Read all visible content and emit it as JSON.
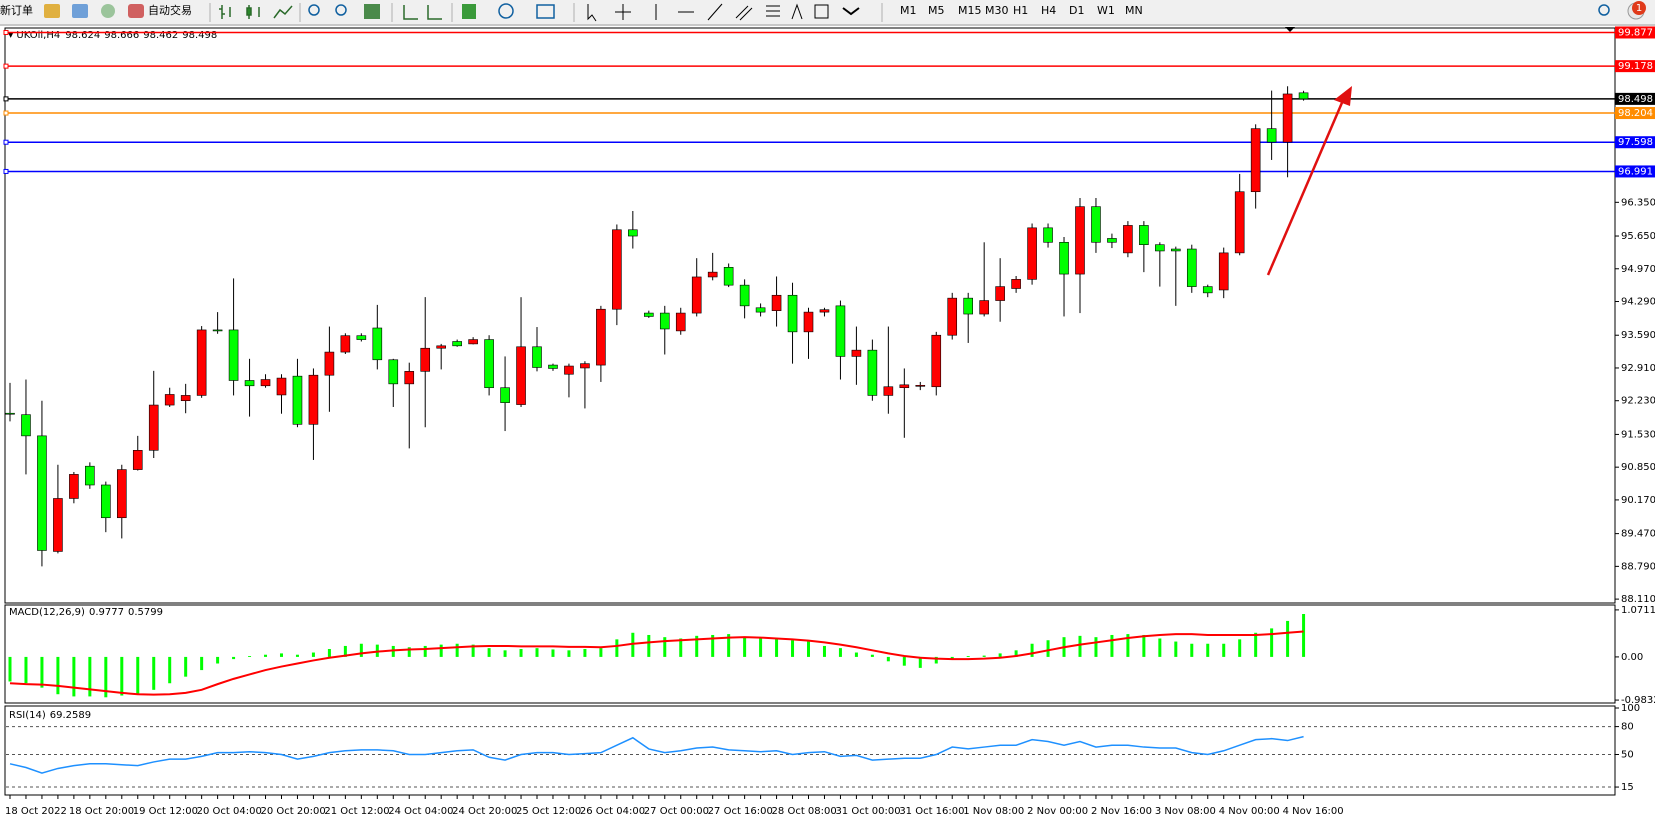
{
  "toolbar": {
    "new_order": "新订单",
    "auto_trading": "自动交易",
    "timeframes": [
      "M1",
      "M5",
      "M15",
      "M30",
      "H1",
      "H4",
      "D1",
      "W1",
      "MN"
    ],
    "notifications": 1
  },
  "chart_data": [
    {
      "type": "candlestick",
      "title": "UKOil,H4",
      "categories": [
        "18 Oct 2022",
        null,
        null,
        null,
        "18 Oct 20:00",
        null,
        null,
        null,
        "19 Oct 12:00",
        null,
        null,
        null,
        "20 Oct 04:00",
        null,
        null,
        null,
        "20 Oct 20:00",
        null,
        null,
        null,
        "21 Oct 12:00",
        null,
        null,
        null,
        "24 Oct 04:00",
        null,
        null,
        null,
        "24 Oct 20:00",
        null,
        null,
        null,
        "25 Oct 12:00",
        null,
        null,
        null,
        "26 Oct 04:00",
        null,
        null,
        null,
        "27 Oct 00:00",
        null,
        null,
        null,
        "27 Oct 16:00",
        null,
        null,
        null,
        "28 Oct 08:00",
        null,
        null,
        null,
        "31 Oct 00:00",
        null,
        null,
        null,
        "31 Oct 16:00",
        null,
        null,
        null,
        "1 Nov 08:00",
        null,
        null,
        null,
        "2 Nov 00:00",
        null,
        null,
        null,
        "2 Nov 16:00",
        null,
        null,
        null,
        "3 Nov 08:00",
        null,
        null,
        null,
        "4 Nov 00:00",
        null,
        null,
        null,
        "4 Nov 16:00",
        null
      ],
      "open": [
        91.97,
        91.94,
        91.5,
        89.1,
        90.2,
        90.87,
        90.48,
        89.8,
        90.8,
        91.2,
        92.14,
        92.23,
        92.34,
        93.7,
        93.7,
        92.65,
        92.54,
        92.35,
        92.74,
        91.74,
        92.76,
        93.24,
        93.58,
        93.74,
        93.08,
        92.58,
        92.84,
        93.32,
        93.46,
        93.41,
        93.5,
        92.5,
        92.15,
        93.35,
        92.97,
        92.78,
        92.91,
        92.97,
        94.13,
        95.78,
        94.05,
        94.05,
        93.68,
        94.05,
        94.8,
        95.0,
        94.63,
        94.16,
        94.1,
        94.42,
        93.66,
        94.07,
        94.2,
        93.15,
        93.28,
        92.34,
        92.5,
        92.55,
        92.52,
        93.59,
        94.36,
        94.03,
        94.31,
        94.56,
        94.75,
        95.82,
        95.52,
        94.86,
        96.26,
        95.6,
        95.3,
        95.87,
        95.47,
        95.38,
        95.38,
        94.6,
        94.53,
        95.3,
        96.57,
        97.88,
        97.6,
        98.624
      ],
      "high": [
        92.6,
        92.67,
        92.23,
        90.9,
        90.75,
        90.95,
        90.55,
        90.9,
        91.5,
        92.85,
        92.5,
        92.58,
        93.78,
        94.07,
        94.77,
        93.1,
        92.78,
        92.78,
        93.1,
        92.9,
        93.77,
        93.63,
        93.63,
        94.22,
        93.1,
        93.02,
        94.38,
        93.41,
        93.5,
        93.55,
        93.59,
        93.15,
        94.38,
        93.76,
        93.0,
        93.0,
        93.05,
        94.2,
        95.89,
        96.17,
        94.1,
        94.2,
        94.16,
        95.19,
        95.3,
        95.08,
        94.75,
        94.25,
        94.81,
        94.68,
        94.16,
        94.16,
        94.31,
        93.77,
        93.5,
        93.77,
        92.9,
        92.62,
        93.66,
        94.47,
        94.47,
        95.52,
        95.19,
        94.82,
        95.91,
        95.91,
        95.63,
        96.44,
        96.44,
        95.7,
        95.96,
        95.96,
        95.52,
        95.43,
        95.47,
        94.64,
        95.41,
        96.94,
        97.97,
        98.67,
        98.76,
        98.666
      ],
      "low": [
        91.8,
        90.7,
        88.79,
        89.06,
        90.1,
        90.4,
        89.5,
        89.37,
        90.78,
        91.04,
        92.1,
        91.97,
        92.29,
        93.62,
        92.34,
        91.9,
        92.5,
        91.96,
        91.68,
        91.0,
        92.0,
        93.2,
        93.46,
        92.88,
        92.1,
        91.24,
        91.68,
        92.88,
        93.35,
        93.4,
        92.34,
        91.6,
        92.1,
        92.84,
        92.85,
        92.3,
        92.07,
        92.62,
        93.8,
        95.39,
        93.95,
        93.19,
        93.6,
        93.98,
        94.73,
        94.59,
        93.94,
        93.98,
        93.77,
        93.0,
        93.1,
        93.98,
        92.67,
        92.56,
        92.23,
        91.96,
        91.46,
        92.45,
        92.34,
        93.5,
        93.43,
        93.98,
        93.87,
        94.47,
        94.64,
        95.41,
        93.98,
        94.05,
        95.3,
        95.4,
        95.21,
        94.9,
        94.6,
        94.2,
        94.47,
        94.38,
        94.36,
        95.25,
        96.22,
        97.23,
        96.87,
        98.462
      ],
      "close": [
        91.95,
        91.5,
        89.12,
        90.2,
        90.7,
        90.48,
        89.8,
        90.8,
        91.2,
        92.14,
        92.36,
        92.34,
        93.7,
        93.68,
        92.65,
        92.54,
        92.67,
        92.7,
        91.74,
        92.76,
        93.24,
        93.58,
        93.5,
        93.08,
        92.58,
        92.84,
        93.32,
        93.37,
        93.37,
        93.5,
        92.5,
        92.19,
        93.35,
        92.92,
        92.9,
        92.95,
        93.0,
        94.13,
        95.78,
        95.65,
        93.98,
        93.72,
        94.05,
        94.8,
        94.9,
        94.63,
        94.2,
        94.07,
        94.42,
        93.66,
        94.07,
        94.12,
        93.15,
        93.28,
        92.34,
        92.52,
        92.56,
        92.55,
        93.59,
        94.36,
        94.03,
        94.31,
        94.6,
        94.75,
        95.82,
        95.52,
        94.86,
        96.26,
        95.52,
        95.52,
        95.87,
        95.47,
        95.34,
        95.34,
        94.6,
        94.47,
        95.3,
        96.57,
        97.88,
        97.6,
        98.6,
        98.498
      ],
      "up_color": "#ff0000",
      "down_color": "#00ff00",
      "ylim": [
        88.05,
        99.97
      ],
      "yticks": [
        {
          "value": 88.11,
          "label": "88.110"
        },
        {
          "value": 88.79,
          "label": "88.790"
        },
        {
          "value": 89.47,
          "label": "89.470"
        },
        {
          "value": 90.17,
          "label": "90.170"
        },
        {
          "value": 90.85,
          "label": "90.850"
        },
        {
          "value": 91.53,
          "label": "91.530"
        },
        {
          "value": 92.23,
          "label": "92.230"
        },
        {
          "value": 92.91,
          "label": "92.910"
        },
        {
          "value": 93.59,
          "label": "93.590"
        },
        {
          "value": 94.29,
          "label": "94.290"
        },
        {
          "value": 94.97,
          "label": "94.970"
        },
        {
          "value": 95.65,
          "label": "95.650"
        },
        {
          "value": 96.35,
          "label": "96.350"
        }
      ],
      "levels": [
        {
          "value": 99.877,
          "color": "#ff0000"
        },
        {
          "value": 99.178,
          "color": "#ff0000"
        },
        {
          "value": 98.498,
          "color": "#000000"
        },
        {
          "value": 98.204,
          "color": "#ff8c00"
        },
        {
          "value": 97.598,
          "color": "#0000ff"
        },
        {
          "value": 96.991,
          "color": "#0000ff"
        }
      ]
    },
    {
      "type": "macd",
      "title": "MACD(12,26,9)",
      "series": [
        {
          "type": "bar",
          "color": "#00ff00",
          "values": [
            -0.56,
            -0.6,
            -0.7,
            -0.85,
            -0.9,
            -0.9,
            -0.92,
            -0.88,
            -0.85,
            -0.75,
            -0.6,
            -0.45,
            -0.3,
            -0.15,
            -0.05,
            0.02,
            0.05,
            0.08,
            0.05,
            0.1,
            0.18,
            0.25,
            0.3,
            0.28,
            0.25,
            0.22,
            0.25,
            0.28,
            0.3,
            0.28,
            0.2,
            0.15,
            0.18,
            0.2,
            0.17,
            0.15,
            0.18,
            0.2,
            0.4,
            0.55,
            0.5,
            0.45,
            0.42,
            0.48,
            0.5,
            0.52,
            0.45,
            0.45,
            0.42,
            0.38,
            0.35,
            0.25,
            0.2,
            0.1,
            0.05,
            -0.1,
            -0.2,
            -0.25,
            -0.15,
            -0.05,
            0.02,
            0.03,
            0.08,
            0.15,
            0.3,
            0.38,
            0.45,
            0.48,
            0.45,
            0.5,
            0.52,
            0.5,
            0.42,
            0.35,
            0.3,
            0.3,
            0.3,
            0.4,
            0.55,
            0.65,
            0.82,
            0.9777
          ]
        },
        {
          "type": "line",
          "color": "#ff0000",
          "values": [
            -0.6,
            -0.62,
            -0.63,
            -0.66,
            -0.7,
            -0.74,
            -0.78,
            -0.82,
            -0.85,
            -0.86,
            -0.85,
            -0.82,
            -0.75,
            -0.62,
            -0.5,
            -0.4,
            -0.3,
            -0.22,
            -0.15,
            -0.08,
            -0.02,
            0.03,
            0.08,
            0.12,
            0.15,
            0.17,
            0.18,
            0.2,
            0.22,
            0.24,
            0.25,
            0.25,
            0.24,
            0.24,
            0.24,
            0.23,
            0.23,
            0.22,
            0.25,
            0.3,
            0.33,
            0.36,
            0.38,
            0.4,
            0.42,
            0.44,
            0.45,
            0.44,
            0.42,
            0.4,
            0.37,
            0.33,
            0.28,
            0.22,
            0.15,
            0.08,
            0.02,
            -0.02,
            -0.04,
            -0.05,
            -0.05,
            -0.04,
            -0.02,
            0.02,
            0.08,
            0.15,
            0.22,
            0.28,
            0.33,
            0.38,
            0.43,
            0.47,
            0.5,
            0.52,
            0.52,
            0.5,
            0.5,
            0.5,
            0.5,
            0.52,
            0.55,
            0.5799
          ]
        }
      ],
      "ylim": [
        -1.05,
        1.16
      ],
      "yticks": [
        1.0711,
        {
          "value": 0,
          "label": "0.00"
        },
        -0.9832
      ]
    },
    {
      "type": "line",
      "title": "RSI(14)",
      "color": "#1e90ff",
      "values": [
        40,
        36,
        30,
        35,
        38,
        40,
        40,
        39,
        38,
        42,
        45,
        45,
        48,
        52,
        52,
        53,
        52,
        50,
        45,
        48,
        52,
        54,
        55,
        55,
        54,
        50,
        50,
        52,
        54,
        55,
        47,
        44,
        50,
        52,
        52,
        50,
        51,
        52,
        60,
        68,
        56,
        52,
        54,
        57,
        58,
        55,
        54,
        53,
        54,
        50,
        52,
        53,
        48,
        49,
        44,
        45,
        46,
        46,
        50,
        58,
        56,
        58,
        60,
        60,
        66,
        64,
        60,
        64,
        58,
        60,
        60,
        58,
        57,
        57,
        52,
        50,
        54,
        60,
        66,
        67,
        65,
        69.2589
      ],
      "ylim": [
        0,
        100
      ],
      "yticks": [
        100,
        80,
        50,
        15
      ],
      "levels": [
        80,
        50,
        15
      ]
    }
  ]
}
